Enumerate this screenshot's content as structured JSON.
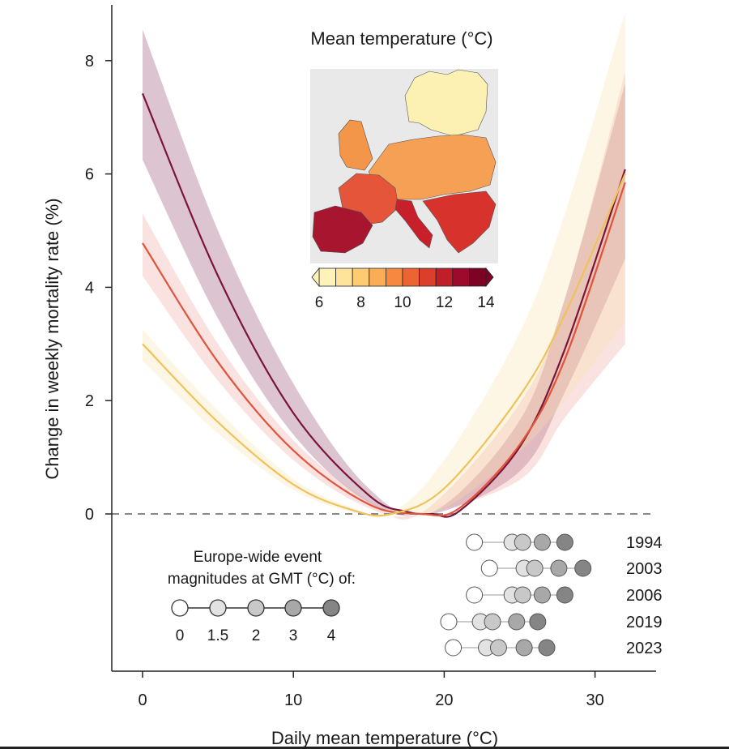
{
  "chart_data": {
    "type": "line",
    "xlabel": "Daily mean temperature (°C)",
    "ylabel": "Change in weekly mortality rate (%)",
    "xlim": [
      -2,
      34
    ],
    "ylim": [
      -5.4,
      8.95
    ],
    "x_ticks": [
      0,
      10,
      20,
      30
    ],
    "y_ticks": [
      0,
      2,
      4,
      6,
      8
    ],
    "zero_line": "dashed",
    "series": [
      {
        "color": "#7a1538",
        "band_color": "#8a3a62",
        "points": [
          [
            0,
            7.42
          ],
          [
            5,
            4.2
          ],
          [
            10,
            1.78
          ],
          [
            15,
            0.33
          ],
          [
            17.5,
            0.04
          ],
          [
            19.2,
            0.0
          ],
          [
            21,
            0.05
          ],
          [
            25,
            1.18
          ],
          [
            28,
            2.91
          ],
          [
            32,
            6.08
          ]
        ],
        "band": [
          [
            0,
            8.55,
            6.25
          ],
          [
            5,
            5.0,
            3.45
          ],
          [
            10,
            2.3,
            1.4
          ],
          [
            15,
            0.45,
            0.2
          ],
          [
            19.2,
            0.03,
            0.0
          ],
          [
            25,
            1.65,
            0.75
          ],
          [
            28,
            3.8,
            2.15
          ],
          [
            32,
            7.6,
            4.5
          ]
        ]
      },
      {
        "color": "#e0543c",
        "band_color": "#f0a09a",
        "points": [
          [
            0,
            4.78
          ],
          [
            5,
            2.68
          ],
          [
            10,
            1.12
          ],
          [
            15,
            0.17
          ],
          [
            18.5,
            0.0
          ],
          [
            21,
            0.1
          ],
          [
            25,
            1.22
          ],
          [
            28,
            2.73
          ],
          [
            32,
            5.85
          ]
        ],
        "band": [
          [
            0,
            5.3,
            4.2
          ],
          [
            5,
            3.0,
            2.35
          ],
          [
            10,
            1.3,
            0.95
          ],
          [
            15,
            0.24,
            0.1
          ],
          [
            18.5,
            0.02,
            0.0
          ],
          [
            25,
            1.95,
            0.6
          ],
          [
            28,
            3.8,
            1.7
          ],
          [
            32,
            7.8,
            3.0
          ]
        ]
      },
      {
        "color": "#efc35a",
        "band_color": "#f7e0a6",
        "points": [
          [
            0,
            3.0
          ],
          [
            5,
            1.62
          ],
          [
            10,
            0.52
          ],
          [
            14,
            0.06
          ],
          [
            16.5,
            0.0
          ],
          [
            20,
            0.45
          ],
          [
            25,
            2.08
          ],
          [
            28,
            3.52
          ],
          [
            32,
            6.0
          ]
        ],
        "band": [
          [
            0,
            3.25,
            2.7
          ],
          [
            5,
            1.82,
            1.42
          ],
          [
            10,
            0.62,
            0.42
          ],
          [
            14,
            0.1,
            0.03
          ],
          [
            16.5,
            0.02,
            0.0
          ],
          [
            20,
            0.95,
            0.1
          ],
          [
            25,
            3.2,
            1.1
          ],
          [
            28,
            5.3,
            2.0
          ],
          [
            32,
            8.85,
            3.4
          ]
        ]
      }
    ]
  },
  "legend": {
    "title_line1": "Europe-wide event",
    "title_line2": "magnitudes at GMT (°C) of:",
    "gmt_levels": [
      "0",
      "1.5",
      "2",
      "3",
      "4"
    ],
    "circle_fills": [
      "#ffffff",
      "#e2e2e2",
      "#c8c8c8",
      "#a8a8a8",
      "#858585"
    ]
  },
  "events": [
    {
      "year": "1994",
      "temps": [
        22.0,
        24.5,
        25.2,
        26.5,
        28.0
      ]
    },
    {
      "year": "2003",
      "temps": [
        23.0,
        25.3,
        26.0,
        27.6,
        29.2
      ]
    },
    {
      "year": "2006",
      "temps": [
        22.0,
        24.5,
        25.2,
        26.5,
        28.0
      ]
    },
    {
      "year": "2019",
      "temps": [
        20.3,
        22.4,
        23.2,
        24.8,
        26.2
      ]
    },
    {
      "year": "2023",
      "temps": [
        20.6,
        22.8,
        23.6,
        25.3,
        26.8
      ]
    }
  ],
  "inset_map": {
    "title": "Mean temperature (°C)",
    "colorbar_ticks": [
      "6",
      "8",
      "10",
      "12",
      "14"
    ],
    "colorbar_colors": [
      "#fdf3b8",
      "#fde49a",
      "#fdcb72",
      "#fbad55",
      "#f6893f",
      "#ec6432",
      "#db3f2c",
      "#c01f2a",
      "#9c0a2c",
      "#7d0325"
    ]
  }
}
